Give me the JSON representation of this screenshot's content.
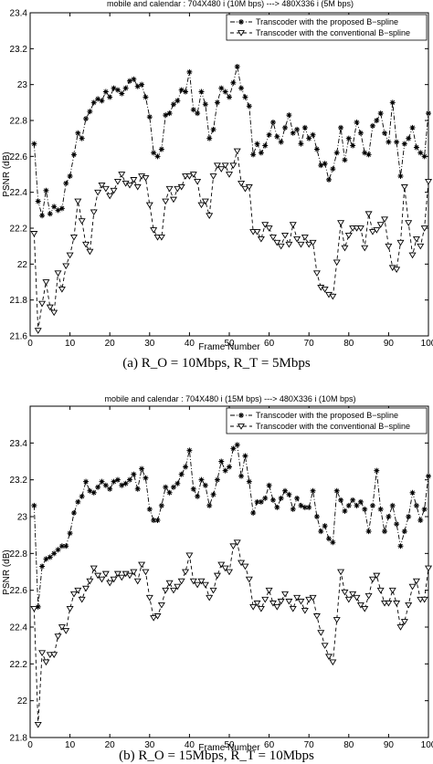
{
  "chart_data": [
    {
      "type": "line",
      "title": "mobile and calendar : 704X480 i (10M bps)     ---> 480X336 i (5M bps)",
      "xlabel": "Frame Number",
      "ylabel": "PSNR (dB)",
      "xlim": [
        0,
        100
      ],
      "ylim": [
        21.6,
        23.4
      ],
      "xticks": [
        0,
        10,
        20,
        30,
        40,
        50,
        60,
        70,
        80,
        90,
        100
      ],
      "yticks": [
        21.6,
        21.8,
        22,
        22.2,
        22.4,
        22.6,
        22.8,
        23,
        23.2,
        23.4
      ],
      "legend_position": "top-right",
      "caption": "(a) R_O = 10Mbps, R_T = 5Mbps",
      "series": [
        {
          "name": "Transcoder with the proposed B−spline",
          "marker": "asterisk",
          "x": [
            1,
            2,
            3,
            4,
            5,
            6,
            7,
            8,
            9,
            10,
            11,
            12,
            13,
            14,
            15,
            16,
            17,
            18,
            19,
            20,
            21,
            22,
            23,
            24,
            25,
            26,
            27,
            28,
            29,
            30,
            31,
            32,
            33,
            34,
            35,
            36,
            37,
            38,
            39,
            40,
            41,
            42,
            43,
            44,
            45,
            46,
            47,
            48,
            49,
            50,
            51,
            52,
            53,
            54,
            55,
            56,
            57,
            58,
            59,
            60,
            61,
            62,
            63,
            64,
            65,
            66,
            67,
            68,
            69,
            70,
            71,
            72,
            73,
            74,
            75,
            76,
            77,
            78,
            79,
            80,
            81,
            82,
            83,
            84,
            85,
            86,
            87,
            88,
            89,
            90,
            91,
            92,
            93,
            94,
            95,
            96,
            97,
            98,
            99,
            100
          ],
          "values": [
            22.67,
            22.35,
            22.27,
            22.41,
            22.28,
            22.32,
            22.3,
            22.31,
            22.45,
            22.49,
            22.61,
            22.73,
            22.7,
            22.81,
            22.85,
            22.9,
            22.92,
            22.91,
            22.96,
            22.93,
            22.98,
            22.97,
            22.95,
            22.98,
            23.02,
            23.03,
            22.99,
            23.0,
            22.93,
            22.82,
            22.62,
            22.6,
            22.64,
            22.83,
            22.84,
            22.89,
            22.91,
            22.97,
            22.96,
            23.07,
            22.86,
            22.84,
            22.96,
            22.89,
            22.7,
            22.75,
            22.9,
            22.98,
            22.96,
            22.93,
            23.01,
            23.1,
            22.98,
            22.93,
            22.88,
            22.61,
            22.67,
            22.62,
            22.66,
            22.72,
            22.79,
            22.71,
            22.68,
            22.76,
            22.83,
            22.73,
            22.75,
            22.67,
            22.76,
            22.7,
            22.72,
            22.64,
            22.55,
            22.56,
            22.47,
            22.53,
            22.62,
            22.76,
            22.58,
            22.7,
            22.66,
            22.79,
            22.73,
            22.62,
            22.61,
            22.77,
            22.8,
            22.84,
            22.73,
            22.68,
            22.9,
            22.68,
            22.49,
            22.67,
            22.7,
            22.76,
            22.65,
            22.62,
            22.6,
            22.84
          ]
        },
        {
          "name": "Transcoder with the conventional B−spline",
          "marker": "triangle-down",
          "x": [
            1,
            2,
            3,
            4,
            5,
            6,
            7,
            8,
            9,
            10,
            11,
            12,
            13,
            14,
            15,
            16,
            17,
            18,
            19,
            20,
            21,
            22,
            23,
            24,
            25,
            26,
            27,
            28,
            29,
            30,
            31,
            32,
            33,
            34,
            35,
            36,
            37,
            38,
            39,
            40,
            41,
            42,
            43,
            44,
            45,
            46,
            47,
            48,
            49,
            50,
            51,
            52,
            53,
            54,
            55,
            56,
            57,
            58,
            59,
            60,
            61,
            62,
            63,
            64,
            65,
            66,
            67,
            68,
            69,
            70,
            71,
            72,
            73,
            74,
            75,
            76,
            77,
            78,
            79,
            80,
            81,
            82,
            83,
            84,
            85,
            86,
            87,
            88,
            89,
            90,
            91,
            92,
            93,
            94,
            95,
            96,
            97,
            98,
            99,
            100
          ],
          "values": [
            22.17,
            21.63,
            21.78,
            21.9,
            21.76,
            21.73,
            21.95,
            21.86,
            21.99,
            22.05,
            22.15,
            22.35,
            22.24,
            22.11,
            22.07,
            22.29,
            22.4,
            22.44,
            22.42,
            22.38,
            22.41,
            22.46,
            22.5,
            22.45,
            22.44,
            22.47,
            22.43,
            22.49,
            22.48,
            22.33,
            22.19,
            22.15,
            22.15,
            22.35,
            22.42,
            22.36,
            22.42,
            22.43,
            22.49,
            22.49,
            22.5,
            22.46,
            22.33,
            22.35,
            22.27,
            22.49,
            22.55,
            22.53,
            22.55,
            22.5,
            22.55,
            22.63,
            22.45,
            22.42,
            22.43,
            22.18,
            22.18,
            22.14,
            22.22,
            22.2,
            22.15,
            22.12,
            22.1,
            22.16,
            22.11,
            22.22,
            22.14,
            22.11,
            22.15,
            22.11,
            22.12,
            21.95,
            21.87,
            21.86,
            21.83,
            21.82,
            22.01,
            22.23,
            22.09,
            22.16,
            22.2,
            22.2,
            22.2,
            22.09,
            22.28,
            22.18,
            22.19,
            22.22,
            22.25,
            22.1,
            21.98,
            21.97,
            22.12,
            22.43,
            22.23,
            22.05,
            22.14,
            22.1,
            22.2,
            22.46
          ]
        }
      ]
    },
    {
      "type": "line",
      "title": "mobile and calendar : 704X480 i (15M bps)     ---> 480X336 i (10M bps)",
      "xlabel": "Frame Number",
      "ylabel": "PSNR (dB)",
      "xlim": [
        0,
        100
      ],
      "ylim": [
        21.8,
        23.6
      ],
      "xticks": [
        0,
        10,
        20,
        30,
        40,
        50,
        60,
        70,
        80,
        90,
        100
      ],
      "yticks": [
        21.8,
        22,
        22.2,
        22.4,
        22.6,
        22.8,
        23,
        23.2,
        23.4
      ],
      "legend_position": "top-right",
      "caption": "(b) R_O = 15Mbps, R_T = 10Mbps",
      "series": [
        {
          "name": "Transcoder with the proposed B−spline",
          "marker": "asterisk",
          "x": [
            1,
            2,
            3,
            4,
            5,
            6,
            7,
            8,
            9,
            10,
            11,
            12,
            13,
            14,
            15,
            16,
            17,
            18,
            19,
            20,
            21,
            22,
            23,
            24,
            25,
            26,
            27,
            28,
            29,
            30,
            31,
            32,
            33,
            34,
            35,
            36,
            37,
            38,
            39,
            40,
            41,
            42,
            43,
            44,
            45,
            46,
            47,
            48,
            49,
            50,
            51,
            52,
            53,
            54,
            55,
            56,
            57,
            58,
            59,
            60,
            61,
            62,
            63,
            64,
            65,
            66,
            67,
            68,
            69,
            70,
            71,
            72,
            73,
            74,
            75,
            76,
            77,
            78,
            79,
            80,
            81,
            82,
            83,
            84,
            85,
            86,
            87,
            88,
            89,
            90,
            91,
            92,
            93,
            94,
            95,
            96,
            97,
            98,
            99,
            100
          ],
          "values": [
            23.06,
            22.51,
            22.73,
            22.77,
            22.78,
            22.8,
            22.82,
            22.84,
            22.84,
            22.91,
            23.02,
            23.08,
            23.11,
            23.19,
            23.14,
            23.13,
            23.16,
            23.19,
            23.17,
            23.15,
            23.19,
            23.2,
            23.17,
            23.18,
            23.2,
            23.23,
            23.15,
            23.26,
            23.21,
            23.04,
            22.98,
            22.98,
            23.06,
            23.16,
            23.13,
            23.16,
            23.18,
            23.23,
            23.27,
            23.36,
            23.15,
            23.11,
            23.2,
            23.17,
            23.06,
            23.12,
            23.2,
            23.3,
            23.25,
            23.27,
            23.37,
            23.39,
            23.22,
            23.33,
            23.19,
            23.02,
            23.08,
            23.08,
            23.1,
            23.17,
            23.09,
            23.05,
            23.1,
            23.14,
            23.12,
            23.04,
            23.1,
            23.06,
            23.05,
            23.05,
            23.14,
            23.0,
            22.92,
            22.95,
            22.88,
            22.86,
            23.14,
            23.09,
            23.03,
            23.06,
            23.09,
            23.06,
            23.08,
            23.04,
            22.92,
            23.06,
            23.25,
            23.04,
            22.92,
            23.0,
            23.06,
            22.96,
            22.84,
            22.92,
            23.0,
            23.13,
            23.06,
            22.98,
            23.04,
            23.22
          ]
        },
        {
          "name": "Transcoder with the conventional B−spline",
          "marker": "triangle-down",
          "x": [
            1,
            2,
            3,
            4,
            5,
            6,
            7,
            8,
            9,
            10,
            11,
            12,
            13,
            14,
            15,
            16,
            17,
            18,
            19,
            20,
            21,
            22,
            23,
            24,
            25,
            26,
            27,
            28,
            29,
            30,
            31,
            32,
            33,
            34,
            35,
            36,
            37,
            38,
            39,
            40,
            41,
            42,
            43,
            44,
            45,
            46,
            47,
            48,
            49,
            50,
            51,
            52,
            53,
            54,
            55,
            56,
            57,
            58,
            59,
            60,
            61,
            62,
            63,
            64,
            65,
            66,
            67,
            68,
            69,
            70,
            71,
            72,
            73,
            74,
            75,
            76,
            77,
            78,
            79,
            80,
            81,
            82,
            83,
            84,
            85,
            86,
            87,
            88,
            89,
            90,
            91,
            92,
            93,
            94,
            95,
            96,
            97,
            98,
            99,
            100
          ],
          "values": [
            22.5,
            21.87,
            22.26,
            22.21,
            22.25,
            22.25,
            22.35,
            22.4,
            22.38,
            22.5,
            22.58,
            22.6,
            22.55,
            22.61,
            22.65,
            22.72,
            22.68,
            22.66,
            22.69,
            22.64,
            22.66,
            22.69,
            22.67,
            22.69,
            22.68,
            22.7,
            22.65,
            22.74,
            22.7,
            22.56,
            22.45,
            22.46,
            22.52,
            22.6,
            22.64,
            22.6,
            22.62,
            22.65,
            22.7,
            22.79,
            22.65,
            22.63,
            22.65,
            22.63,
            22.56,
            22.6,
            22.68,
            22.74,
            22.72,
            22.7,
            22.84,
            22.86,
            22.75,
            22.73,
            22.66,
            22.51,
            22.53,
            22.5,
            22.55,
            22.6,
            22.53,
            22.51,
            22.54,
            22.58,
            22.54,
            22.5,
            22.56,
            22.54,
            22.49,
            22.55,
            22.56,
            22.46,
            22.37,
            22.3,
            22.24,
            22.21,
            22.44,
            22.7,
            22.59,
            22.55,
            22.58,
            22.56,
            22.52,
            22.5,
            22.57,
            22.66,
            22.68,
            22.6,
            22.53,
            22.53,
            22.6,
            22.53,
            22.4,
            22.43,
            22.52,
            22.62,
            22.65,
            22.55,
            22.55,
            22.72
          ]
        }
      ]
    }
  ]
}
